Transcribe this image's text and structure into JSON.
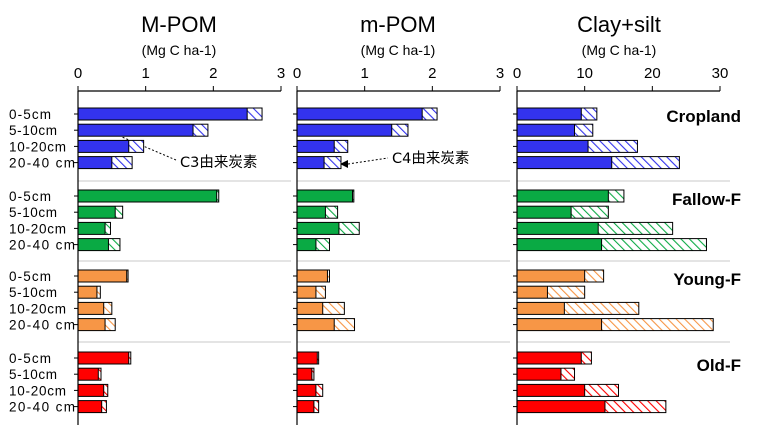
{
  "chart_data": {
    "type": "bar",
    "orientation": "horizontal",
    "stacked": true,
    "depths": [
      "0-5cm",
      "5-10cm",
      "10-20cm",
      "20-40 cm"
    ],
    "groups": [
      {
        "name": "Cropland",
        "color": "#3333ee"
      },
      {
        "name": "Fallow-F",
        "color": "#0aaa44"
      },
      {
        "name": "Young-F",
        "color": "#f79646"
      },
      {
        "name": "Old-F",
        "color": "#ff0000"
      }
    ],
    "group_label_colors": [
      "#3333ee",
      "#1a9641",
      "#d2691e",
      "#ff2a00"
    ],
    "segments": [
      "C3由来炭素",
      "C4由来炭素"
    ],
    "panels": [
      {
        "title": "M-POM",
        "unit": "(Mg C ha-1)",
        "xlim": [
          0,
          3
        ],
        "ticks": [
          "0",
          "1",
          "2",
          "3"
        ],
        "c4": [
          [
            2.5,
            1.7,
            0.75,
            0.5
          ],
          [
            2.05,
            0.55,
            0.4,
            0.45
          ],
          [
            0.72,
            0.28,
            0.38,
            0.4
          ],
          [
            0.75,
            0.3,
            0.38,
            0.35
          ]
        ],
        "total": [
          [
            2.72,
            1.92,
            0.97,
            0.8
          ],
          [
            2.08,
            0.66,
            0.48,
            0.62
          ],
          [
            0.74,
            0.33,
            0.5,
            0.55
          ],
          [
            0.78,
            0.34,
            0.44,
            0.42
          ]
        ]
      },
      {
        "title": "m-POM",
        "unit": "(Mg C ha-1)",
        "xlim": [
          0,
          3
        ],
        "ticks": [
          "0",
          "1",
          "2",
          "3"
        ],
        "c4": [
          [
            1.85,
            1.4,
            0.55,
            0.4
          ],
          [
            0.82,
            0.42,
            0.62,
            0.28
          ],
          [
            0.45,
            0.28,
            0.38,
            0.55
          ],
          [
            0.3,
            0.22,
            0.28,
            0.25
          ]
        ],
        "total": [
          [
            2.07,
            1.64,
            0.75,
            0.65
          ],
          [
            0.84,
            0.6,
            0.92,
            0.48
          ],
          [
            0.48,
            0.42,
            0.7,
            0.85
          ],
          [
            0.32,
            0.25,
            0.38,
            0.32
          ]
        ]
      },
      {
        "title": "Clay+silt",
        "unit": "(Mg C ha-1)",
        "xlim": [
          0,
          30
        ],
        "ticks": [
          "0",
          "10",
          "20",
          "30"
        ],
        "c4": [
          [
            9.5,
            8.5,
            10.5,
            14.0
          ],
          [
            13.5,
            8.0,
            12.0,
            12.5
          ],
          [
            10.0,
            4.5,
            7.0,
            12.5
          ],
          [
            9.5,
            6.5,
            10.0,
            13.0
          ]
        ],
        "total": [
          [
            11.8,
            11.2,
            17.8,
            24.0
          ],
          [
            15.8,
            13.5,
            23.0,
            28.0
          ],
          [
            12.8,
            10.0,
            18.0,
            29.0
          ],
          [
            11.0,
            8.5,
            15.0,
            22.0
          ]
        ]
      }
    ],
    "annotations": [
      "C3由来炭素",
      "C4由来炭素"
    ]
  }
}
